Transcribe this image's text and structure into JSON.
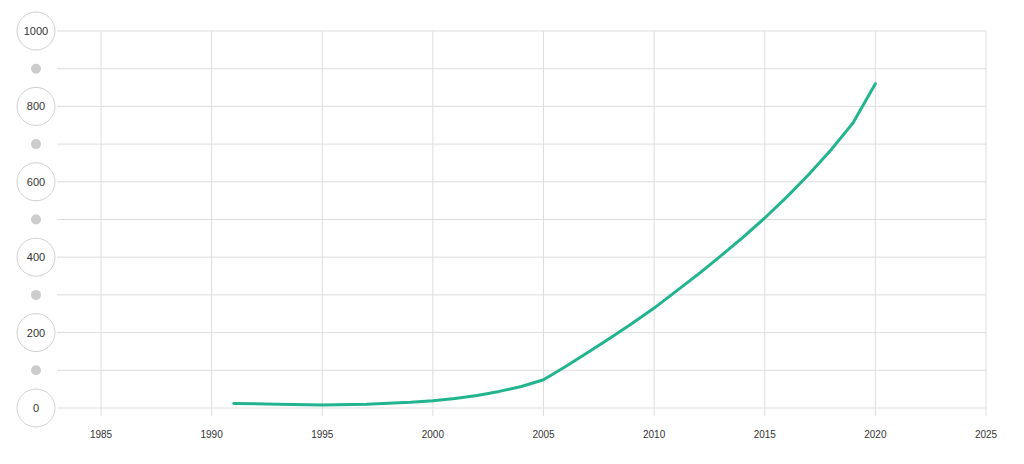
{
  "chart_data": {
    "type": "line",
    "x": [
      1991,
      1993,
      1995,
      1997,
      1999,
      2000,
      2001,
      2002,
      2003,
      2004,
      2005,
      2006,
      2007,
      2008,
      2009,
      2010,
      2011,
      2012,
      2013,
      2014,
      2015,
      2016,
      2017,
      2018,
      2019,
      2020
    ],
    "values": [
      12,
      10,
      8,
      10,
      15,
      19,
      25,
      33,
      44,
      57,
      75,
      110,
      147,
      185,
      224,
      265,
      310,
      355,
      403,
      452,
      504,
      560,
      620,
      685,
      757,
      860
    ],
    "color": "#22b48f",
    "xlim": [
      1985,
      2025
    ],
    "xticks": [
      1985,
      1990,
      1995,
      2000,
      2005,
      2010,
      2015,
      2020,
      2025
    ],
    "ylim": [
      0,
      1000
    ],
    "yticks": [
      0,
      200,
      400,
      600,
      800,
      1000
    ],
    "grid": true
  }
}
